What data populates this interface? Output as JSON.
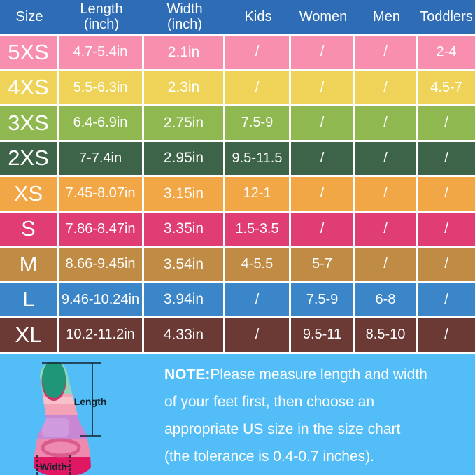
{
  "chart_data": {
    "type": "table",
    "title": "Fin size chart",
    "columns": [
      "Size",
      "Length\n(inch)",
      "Width\n(inch)",
      "Kids",
      "Women",
      "Men",
      "Toddlers"
    ],
    "rows": [
      [
        "5XS",
        "4.7-5.4in",
        "2.1in",
        "/",
        "/",
        "/",
        "2-4"
      ],
      [
        "4XS",
        "5.5-6.3in",
        "2.3in",
        "/",
        "/",
        "/",
        "4.5-7"
      ],
      [
        "3XS",
        "6.4-6.9in",
        "2.75in",
        "7.5-9",
        "/",
        "/",
        "/"
      ],
      [
        "2XS",
        "7-7.4in",
        "2.95in",
        "9.5-11.5",
        "/",
        "/",
        "/"
      ],
      [
        "XS",
        "7.45-8.07in",
        "3.15in",
        "12-1",
        "/",
        "/",
        "/"
      ],
      [
        "S",
        "7.86-8.47in",
        "3.35in",
        "1.5-3.5",
        "/",
        "/",
        "/"
      ],
      [
        "M",
        "8.66-9.45in",
        "3.54in",
        "4-5.5",
        "5-7",
        "/",
        "/"
      ],
      [
        "L",
        "9.46-10.24in",
        "3.94in",
        "/",
        "7.5-9",
        "6-8",
        "/"
      ],
      [
        "XL",
        "10.2-11.2in",
        "4.33in",
        "/",
        "9.5-11",
        "8.5-10",
        "/"
      ]
    ],
    "row_colors": [
      "#f98fae",
      "#eed358",
      "#90b850",
      "#3d6349",
      "#f2a747",
      "#e13d75",
      "#bf8b45",
      "#3b86c8",
      "#6b3a34"
    ]
  },
  "colors": {
    "header_bg": "#2e6db5",
    "footer_bg": "#53bdf8",
    "cell_border": "#ffffff",
    "table_text": "#ffffff",
    "note_text": "#ffffff"
  },
  "note": {
    "label": "NOTE:",
    "line1": "Please measure length and width",
    "line2": "of your feet first, then choose an",
    "line3": "appropriate US size in the size chart",
    "line4": "(the tolerance is 0.4-0.7 inches)."
  },
  "fin_diagram": {
    "length_label": "Length",
    "width_label": "Width"
  }
}
